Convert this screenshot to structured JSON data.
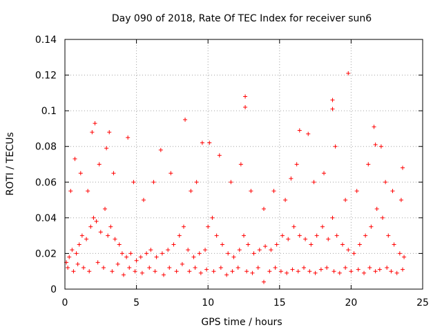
{
  "chart_data": {
    "type": "scatter",
    "title": "Day 090 of 2018, Rate Of TEC Index for receiver sun6",
    "xlabel": "GPS time / hours",
    "ylabel": "ROTI / TECUs",
    "xlim": [
      0,
      25
    ],
    "ylim": [
      0,
      0.14
    ],
    "x_ticks": [
      0,
      5,
      10,
      15,
      20,
      25
    ],
    "x_tick_labels": [
      "0",
      "5",
      "10",
      "15",
      "20",
      "25"
    ],
    "y_ticks": [
      0,
      0.02,
      0.04,
      0.06,
      0.08,
      0.1,
      0.12,
      0.14
    ],
    "y_tick_labels": [
      "0",
      "0.02",
      "0.04",
      "0.06",
      "0.08",
      "0.1",
      "0.12",
      "0.14"
    ],
    "grid": true,
    "marker": "+",
    "color": "#ff0000",
    "series": [
      {
        "name": "ROTI",
        "x": [
          0.1,
          0.3,
          0.5,
          0.8,
          1.0,
          1.2,
          1.5,
          1.8,
          2.0,
          2.2,
          2.5,
          2.8,
          3.0,
          3.2,
          3.5,
          3.8,
          4.0,
          4.3,
          4.6,
          5.0,
          5.3,
          5.7,
          6.0,
          6.4,
          6.8,
          7.2,
          7.6,
          8.0,
          8.3,
          8.6,
          9.0,
          9.4,
          9.8,
          10.0,
          10.3,
          10.6,
          11.0,
          11.4,
          11.8,
          12.2,
          12.5,
          12.8,
          13.2,
          13.6,
          14.0,
          14.4,
          14.8,
          15.2,
          15.6,
          16.0,
          16.4,
          16.8,
          17.2,
          17.6,
          18.0,
          18.4,
          18.7,
          19.0,
          19.4,
          19.8,
          20.2,
          20.6,
          21.0,
          21.4,
          21.8,
          22.2,
          22.6,
          23.0,
          23.4,
          23.7,
          0.7,
          2.1,
          2.9,
          4.4,
          6.7,
          8.4,
          10.1,
          12.6,
          12.6,
          15.8,
          16.4,
          18.7,
          18.7,
          19.8,
          21.6,
          22.1,
          23.6,
          1.9,
          3.1,
          9.6,
          17.0,
          21.7,
          0.4,
          1.1,
          1.6,
          2.4,
          3.4,
          4.8,
          5.5,
          6.2,
          7.4,
          8.8,
          9.2,
          10.8,
          11.6,
          12.3,
          13.0,
          13.9,
          14.6,
          15.4,
          16.2,
          17.4,
          18.1,
          18.9,
          19.6,
          20.4,
          21.2,
          22.4,
          22.9,
          23.5,
          0.2,
          0.6,
          0.9,
          1.3,
          1.7,
          2.3,
          2.7,
          3.3,
          3.7,
          4.1,
          4.5,
          4.9,
          5.4,
          5.9,
          6.3,
          6.9,
          7.3,
          7.8,
          8.2,
          8.7,
          9.1,
          9.5,
          9.9,
          10.4,
          10.9,
          11.3,
          11.7,
          12.1,
          12.7,
          13.1,
          13.5,
          13.9,
          14.3,
          14.7,
          15.1,
          15.5,
          15.9,
          16.3,
          16.7,
          17.1,
          17.5,
          17.9,
          18.3,
          18.8,
          19.2,
          19.6,
          20.0,
          20.5,
          20.9,
          21.3,
          21.7,
          22.0,
          22.5,
          22.8,
          23.2,
          23.6
        ],
        "y": [
          0.015,
          0.018,
          0.022,
          0.02,
          0.025,
          0.03,
          0.028,
          0.035,
          0.04,
          0.038,
          0.032,
          0.045,
          0.03,
          0.035,
          0.028,
          0.025,
          0.02,
          0.018,
          0.02,
          0.016,
          0.018,
          0.02,
          0.022,
          0.018,
          0.02,
          0.022,
          0.025,
          0.03,
          0.035,
          0.022,
          0.018,
          0.02,
          0.022,
          0.035,
          0.04,
          0.03,
          0.025,
          0.02,
          0.018,
          0.022,
          0.03,
          0.025,
          0.02,
          0.022,
          0.024,
          0.022,
          0.025,
          0.03,
          0.028,
          0.035,
          0.03,
          0.028,
          0.025,
          0.03,
          0.035,
          0.028,
          0.04,
          0.03,
          0.025,
          0.022,
          0.02,
          0.025,
          0.03,
          0.035,
          0.045,
          0.04,
          0.03,
          0.025,
          0.02,
          0.018,
          0.073,
          0.093,
          0.079,
          0.085,
          0.078,
          0.095,
          0.082,
          0.108,
          0.102,
          0.062,
          0.089,
          0.106,
          0.101,
          0.121,
          0.091,
          0.08,
          0.068,
          0.088,
          0.088,
          0.082,
          0.087,
          0.081,
          0.055,
          0.065,
          0.055,
          0.07,
          0.065,
          0.06,
          0.05,
          0.06,
          0.065,
          0.055,
          0.06,
          0.075,
          0.06,
          0.07,
          0.055,
          0.045,
          0.055,
          0.05,
          0.07,
          0.06,
          0.065,
          0.08,
          0.05,
          0.055,
          0.07,
          0.06,
          0.055,
          0.05,
          0.012,
          0.01,
          0.014,
          0.012,
          0.01,
          0.015,
          0.012,
          0.01,
          0.014,
          0.008,
          0.012,
          0.01,
          0.009,
          0.012,
          0.01,
          0.008,
          0.012,
          0.01,
          0.014,
          0.01,
          0.012,
          0.009,
          0.011,
          0.01,
          0.012,
          0.008,
          0.01,
          0.012,
          0.01,
          0.009,
          0.012,
          0.004,
          0.01,
          0.012,
          0.01,
          0.009,
          0.011,
          0.01,
          0.012,
          0.01,
          0.009,
          0.011,
          0.012,
          0.01,
          0.009,
          0.012,
          0.01,
          0.011,
          0.009,
          0.012,
          0.01,
          0.011,
          0.012,
          0.01,
          0.009,
          0.011
        ]
      }
    ]
  }
}
